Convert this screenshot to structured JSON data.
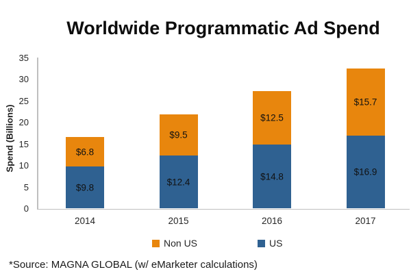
{
  "title": "Worldwide Programmatic Ad Spend",
  "source_note": "*Source: MAGNA GLOBAL (w/ eMarketer calculations)",
  "chart_data": {
    "type": "bar",
    "stacked": true,
    "title": "Worldwide Programmatic Ad Spend",
    "ylabel": "Spend (Billions)",
    "xlabel": "",
    "ylim": [
      0,
      35
    ],
    "yticks": [
      0,
      5,
      10,
      15,
      20,
      25,
      30,
      35
    ],
    "grid": false,
    "categories": [
      "2014",
      "2015",
      "2016",
      "2017"
    ],
    "series": [
      {
        "name": "US",
        "color": "#2F6191",
        "values": [
          9.8,
          12.4,
          14.8,
          16.9
        ],
        "labels": [
          "$9.8",
          "$12.4",
          "$14.8",
          "$16.9"
        ]
      },
      {
        "name": "Non US",
        "color": "#E8860D",
        "values": [
          6.8,
          9.5,
          12.5,
          15.7
        ],
        "labels": [
          "$6.8",
          "$9.5",
          "$12.5",
          "$15.7"
        ]
      }
    ],
    "legend_position": "bottom",
    "legend": [
      {
        "label": "Non US",
        "color": "#E8860D"
      },
      {
        "label": "US",
        "color": "#2F6191"
      }
    ],
    "axis_color": "#BFBFBF"
  }
}
